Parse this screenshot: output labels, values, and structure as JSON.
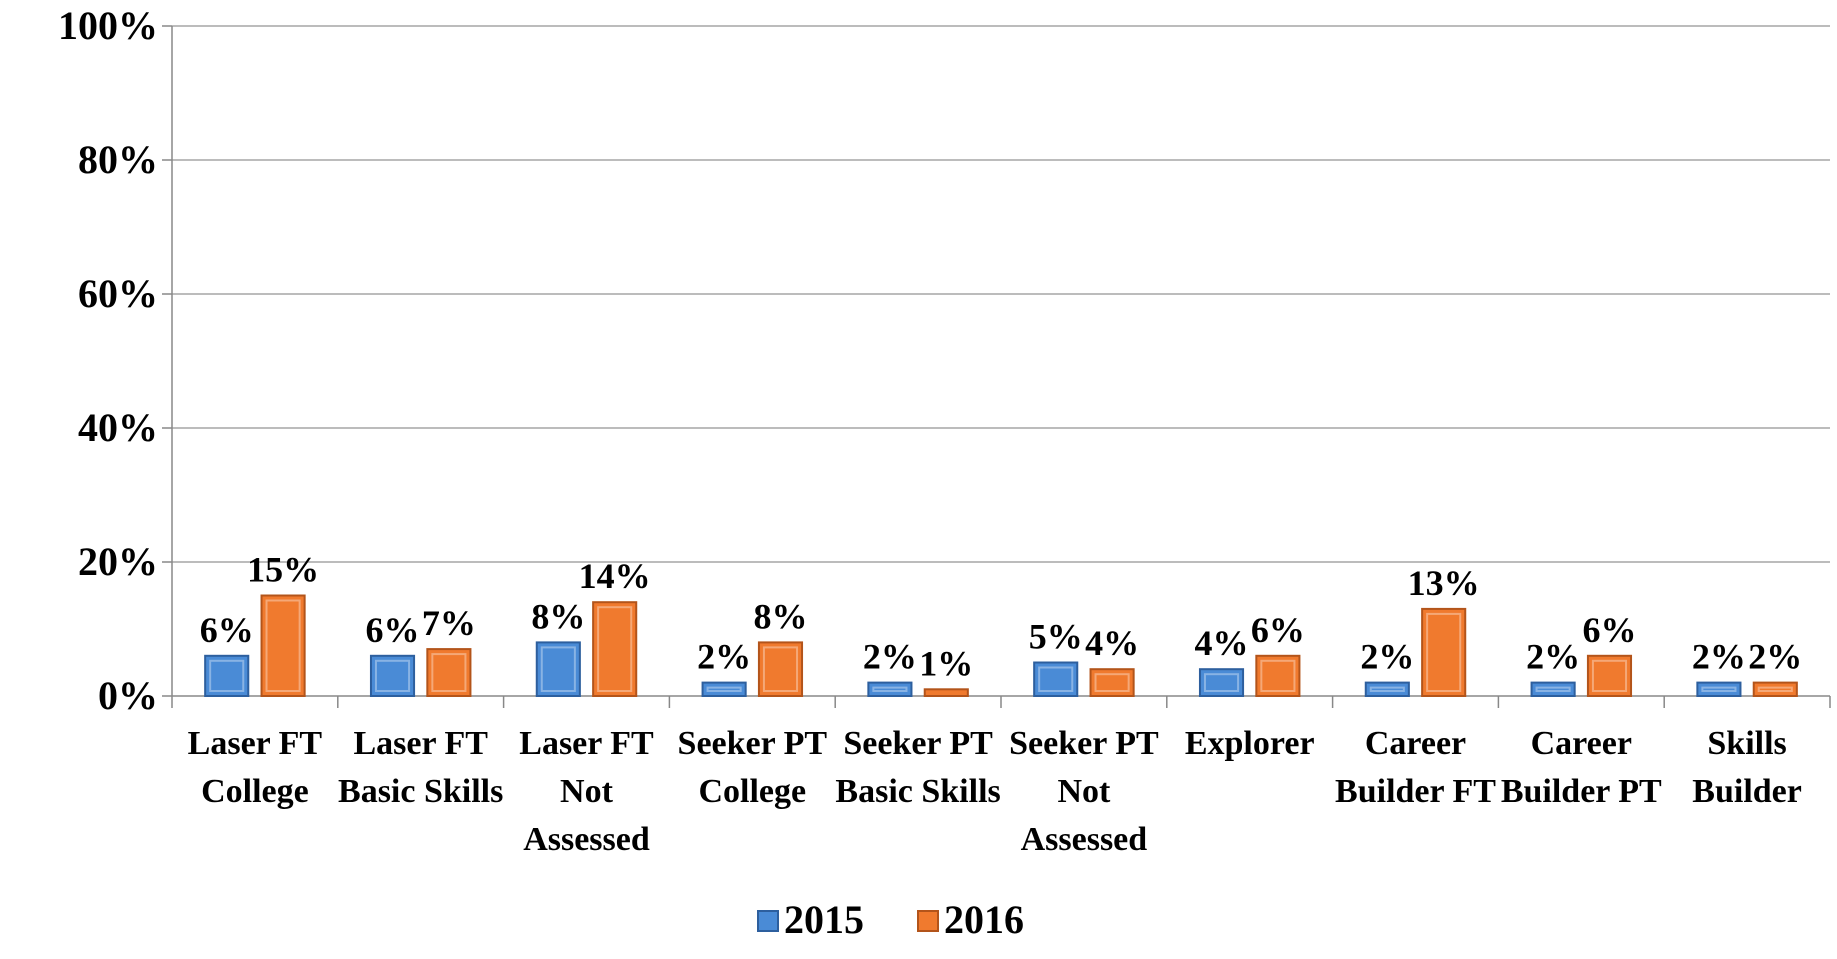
{
  "chart_data": {
    "type": "bar",
    "categories": [
      "Laser FT College",
      "Laser FT Basic Skills",
      "Laser FT Not Assessed",
      "Seeker PT College",
      "Seeker PT Basic Skills",
      "Seeker PT Not Assessed",
      "Explorer",
      "Career Builder FT",
      "Career Builder PT",
      "Skills Builder"
    ],
    "series": [
      {
        "name": "2015",
        "color": "#4a8bd6",
        "values": [
          6,
          6,
          8,
          2,
          2,
          5,
          4,
          2,
          2,
          2
        ],
        "value_labels": [
          "6%",
          "6%",
          "8%",
          "2%",
          "2%",
          "5%",
          "4%",
          "2%",
          "2%",
          "2%"
        ]
      },
      {
        "name": "2016",
        "color": "#f07a2e",
        "values": [
          15,
          7,
          14,
          8,
          1,
          4,
          6,
          13,
          6,
          2
        ],
        "value_labels": [
          "15%",
          "7%",
          "14%",
          "8%",
          "1%",
          "4%",
          "6%",
          "13%",
          "6%",
          "2%"
        ]
      }
    ],
    "ylim": [
      0,
      100
    ],
    "yticks": [
      {
        "value": 0,
        "label": "0%"
      },
      {
        "value": 20,
        "label": "20%"
      },
      {
        "value": 40,
        "label": "40%"
      },
      {
        "value": 60,
        "label": "60%"
      },
      {
        "value": 80,
        "label": "80%"
      },
      {
        "value": 100,
        "label": "100%"
      }
    ],
    "grid": true,
    "legend": "bottom"
  }
}
